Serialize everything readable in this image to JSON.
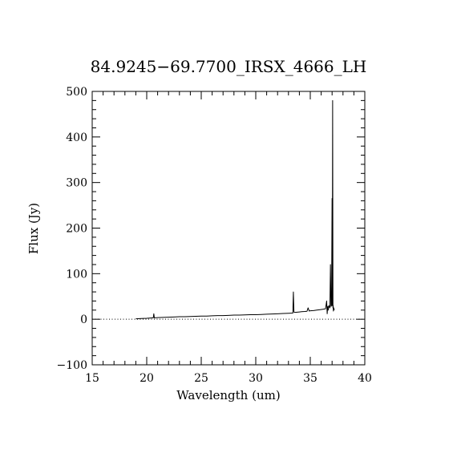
{
  "chart_data": {
    "type": "line",
    "title": "84.9245−69.7700_IRSX_4666_LH",
    "xlabel": "Wavelength (um)",
    "ylabel": "Flux (Jy)",
    "xlim": [
      15,
      40
    ],
    "ylim": [
      -100,
      500
    ],
    "x_ticks": [
      {
        "value": 15,
        "label": "15"
      },
      {
        "value": 20,
        "label": "20"
      },
      {
        "value": 25,
        "label": "25"
      },
      {
        "value": 30,
        "label": "30"
      },
      {
        "value": 35,
        "label": "35"
      },
      {
        "value": 40,
        "label": "40"
      }
    ],
    "y_ticks": [
      {
        "value": -100,
        "label": "−100"
      },
      {
        "value": 0,
        "label": "0"
      },
      {
        "value": 100,
        "label": "100"
      },
      {
        "value": 200,
        "label": "200"
      },
      {
        "value": 300,
        "label": "300"
      },
      {
        "value": 400,
        "label": "400"
      },
      {
        "value": 500,
        "label": "500"
      }
    ],
    "x_minor_step": 1,
    "y_minor_step": 20,
    "zero_line": {
      "y": 0,
      "style": "dotted"
    },
    "grid": false,
    "series": [
      {
        "x": [
          19.0,
          19.5,
          20.0,
          20.5,
          20.6,
          20.65,
          20.7,
          21.0,
          21.5,
          22.0,
          22.5,
          23.0,
          23.5,
          24.0,
          24.5,
          25.0,
          25.5,
          26.0,
          26.5,
          27.0,
          27.5,
          28.0,
          28.5,
          29.0,
          29.5,
          30.0,
          30.5,
          31.0,
          31.5,
          32.0,
          32.5,
          33.0,
          33.4,
          33.45,
          33.5,
          33.55,
          33.6,
          33.8,
          34.0,
          34.2,
          34.5,
          34.7,
          34.8,
          34.9,
          35.0,
          35.3,
          35.6,
          35.9,
          36.2,
          36.4,
          36.5,
          36.55,
          36.6,
          36.65,
          36.7,
          36.8,
          36.85,
          36.9,
          36.95,
          37.0,
          37.02,
          37.05,
          37.08,
          37.1,
          37.12,
          37.15,
          37.18,
          37.2
        ],
        "y": [
          1,
          1.5,
          2,
          3,
          3,
          12,
          3,
          3.5,
          4,
          4.5,
          5,
          5.5,
          5.5,
          6,
          6.5,
          7,
          7,
          7.5,
          8,
          8,
          8.5,
          9,
          9,
          9.5,
          10,
          10,
          10.5,
          11,
          11.5,
          12,
          12.5,
          13,
          13.5,
          60,
          16,
          15,
          15,
          15.5,
          16,
          16.5,
          17,
          17.5,
          25,
          18,
          18.5,
          19,
          20,
          21,
          22,
          23,
          40,
          12,
          28,
          20,
          30,
          25,
          120,
          28,
          30,
          265,
          30,
          480,
          25,
          30,
          18,
          25,
          22,
          20
        ]
      }
    ]
  }
}
